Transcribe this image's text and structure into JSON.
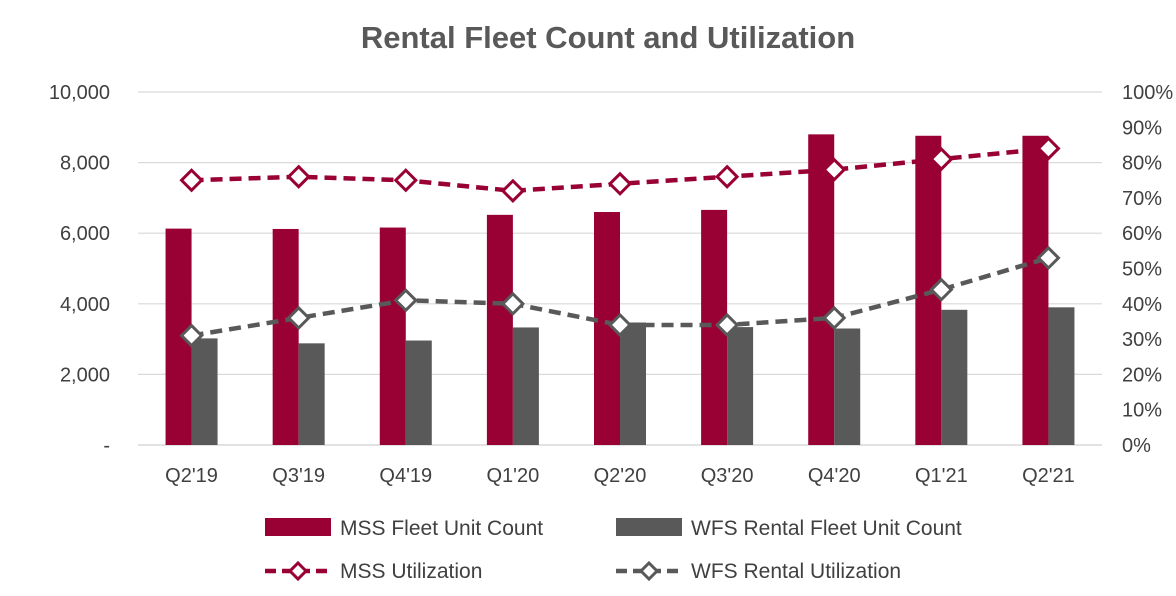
{
  "chart_data": {
    "type": "bar",
    "title": "Rental Fleet Count and Utilization",
    "categories": [
      "Q2'19",
      "Q3'19",
      "Q4'19",
      "Q1'20",
      "Q2'20",
      "Q3'20",
      "Q4'20",
      "Q1'21",
      "Q2'21"
    ],
    "y_left": {
      "ylim": [
        0,
        10000
      ],
      "ticks": [
        0,
        2000,
        4000,
        6000,
        8000,
        10000
      ],
      "tick_labels": [
        "-",
        "2,000",
        "4,000",
        "6,000",
        "8,000",
        "10,000"
      ]
    },
    "y_right": {
      "ylim": [
        0,
        100
      ],
      "ticks": [
        0,
        10,
        20,
        30,
        40,
        50,
        60,
        70,
        80,
        90,
        100
      ],
      "tick_labels": [
        "0%",
        "10%",
        "20%",
        "30%",
        "40%",
        "50%",
        "60%",
        "70%",
        "80%",
        "90%",
        "100%"
      ]
    },
    "series": [
      {
        "name": "MSS Fleet Unit Count",
        "kind": "bar",
        "axis": "left",
        "color": "#990033",
        "values": [
          6130,
          6120,
          6160,
          6520,
          6600,
          6660,
          8800,
          8760,
          8760
        ]
      },
      {
        "name": "WFS Rental Fleet Unit Count",
        "kind": "bar",
        "axis": "left",
        "color": "#595959",
        "values": [
          3020,
          2880,
          2960,
          3330,
          3470,
          3340,
          3300,
          3830,
          3900
        ]
      },
      {
        "name": "MSS Utilization",
        "kind": "line",
        "axis": "right",
        "color": "#990033",
        "values": [
          75,
          76,
          75,
          72,
          74,
          76,
          78,
          81,
          84
        ]
      },
      {
        "name": "WFS Rental Utilization",
        "kind": "line",
        "axis": "right",
        "color": "#595959",
        "values": [
          31,
          36,
          41,
          40,
          34,
          34,
          36,
          44,
          53
        ]
      }
    ],
    "grid": "horizontal",
    "legend_position": "bottom"
  }
}
